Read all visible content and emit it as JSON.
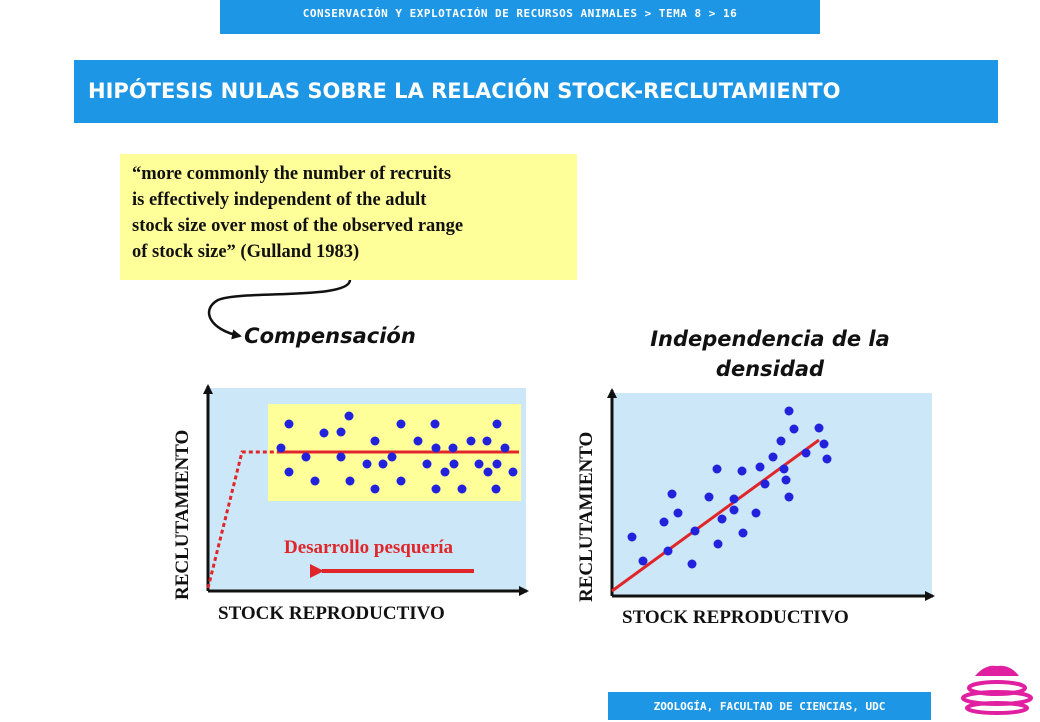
{
  "header": {
    "breadcrumb": "CONSERVACIÓN Y EXPLOTACIÓN DE RECURSOS ANIMALES > TEMA 8 > 16"
  },
  "title": "HIPÓTESIS NULAS SOBRE LA RELACIÓN STOCK-RECLUTAMIENTO",
  "quote": {
    "lines": [
      "“more commonly the number of recruits",
      "is effectively independent of the adult",
      "stock size over most of the observed range",
      "of stock size” (Gulland 1983)"
    ]
  },
  "left_chart": {
    "heading": "Compensación",
    "ylabel": "RECLUTAMIENTO",
    "xlabel": "STOCK REPRODUCTIVO",
    "arrow_label": "Desarrollo pesquería"
  },
  "right_chart": {
    "heading": "Independencia de la densidad",
    "ylabel": "RECLUTAMIENTO",
    "xlabel": "STOCK REPRODUCTIVO"
  },
  "footer": "ZOOLOGÍA, FACULTAD DE CIENCIAS, UDC",
  "colors": {
    "accent": "#1e96e6",
    "plot_bg": "#cce8f8",
    "highlight": "#ffff99",
    "dots": "#2222dd",
    "line": "#e0262a"
  }
}
